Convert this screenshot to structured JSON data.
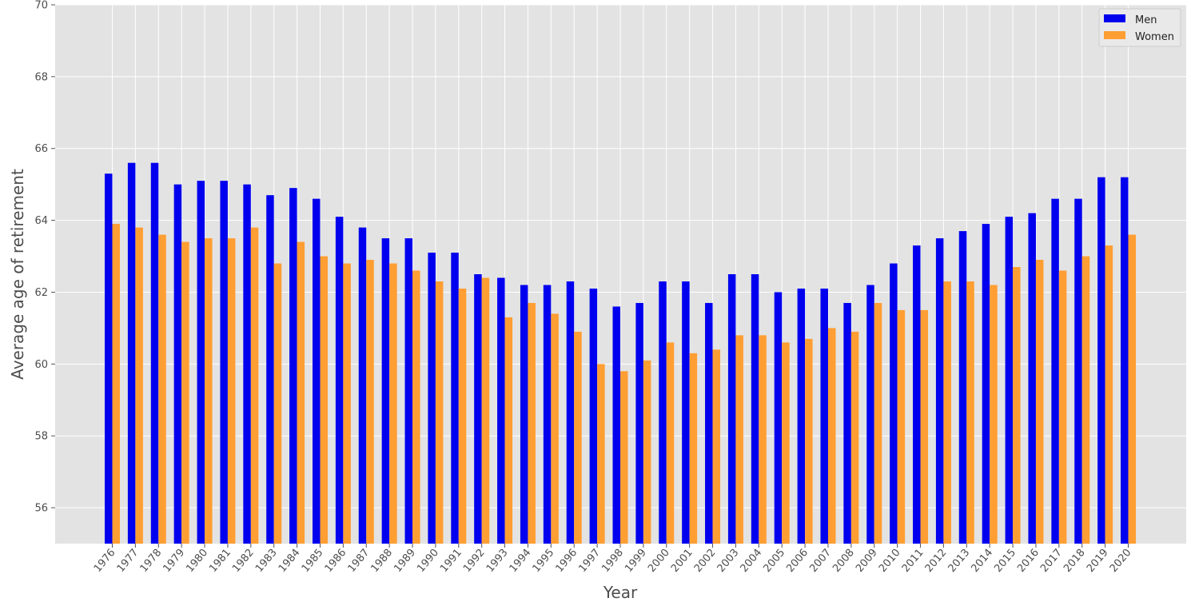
{
  "chart_data": {
    "type": "bar",
    "xlabel": "Year",
    "ylabel": "Average age of retirement",
    "ylim": [
      55,
      70
    ],
    "yticks": [
      56,
      58,
      60,
      62,
      64,
      66,
      68,
      70
    ],
    "grid": true,
    "legend_position": "top-right",
    "categories": [
      "1976",
      "1977",
      "1978",
      "1979",
      "1980",
      "1981",
      "1982",
      "1983",
      "1984",
      "1985",
      "1986",
      "1987",
      "1988",
      "1989",
      "1990",
      "1991",
      "1992",
      "1993",
      "1994",
      "1995",
      "1996",
      "1997",
      "1998",
      "1999",
      "2000",
      "2001",
      "2002",
      "2003",
      "2004",
      "2005",
      "2006",
      "2007",
      "2008",
      "2009",
      "2010",
      "2011",
      "2012",
      "2013",
      "2014",
      "2015",
      "2016",
      "2017",
      "2018",
      "2019",
      "2020"
    ],
    "series": [
      {
        "name": "Men",
        "color": "#0000ee",
        "values": [
          65.3,
          65.6,
          65.6,
          65.0,
          65.1,
          65.1,
          65.0,
          64.7,
          64.9,
          64.6,
          64.1,
          63.8,
          63.5,
          63.5,
          63.1,
          63.1,
          62.5,
          62.4,
          62.2,
          62.2,
          62.3,
          62.1,
          61.6,
          61.7,
          62.3,
          62.3,
          61.7,
          62.5,
          62.5,
          62.0,
          62.1,
          62.1,
          61.7,
          62.2,
          62.8,
          63.3,
          63.5,
          63.7,
          63.9,
          64.1,
          64.2,
          64.6,
          64.6,
          65.2,
          65.2
        ]
      },
      {
        "name": "Women",
        "color": "#ff9e33",
        "values": [
          63.9,
          63.8,
          63.6,
          63.4,
          63.5,
          63.5,
          63.8,
          62.8,
          63.4,
          63.0,
          62.8,
          62.9,
          62.8,
          62.6,
          62.3,
          62.1,
          62.4,
          61.3,
          61.7,
          61.4,
          60.9,
          60.0,
          59.8,
          60.1,
          60.6,
          60.3,
          60.4,
          60.8,
          60.8,
          60.6,
          60.7,
          61.0,
          60.9,
          61.7,
          61.5,
          61.5,
          62.3,
          62.3,
          62.2,
          62.7,
          62.9,
          62.6,
          63.0,
          63.3,
          63.6
        ]
      }
    ]
  }
}
